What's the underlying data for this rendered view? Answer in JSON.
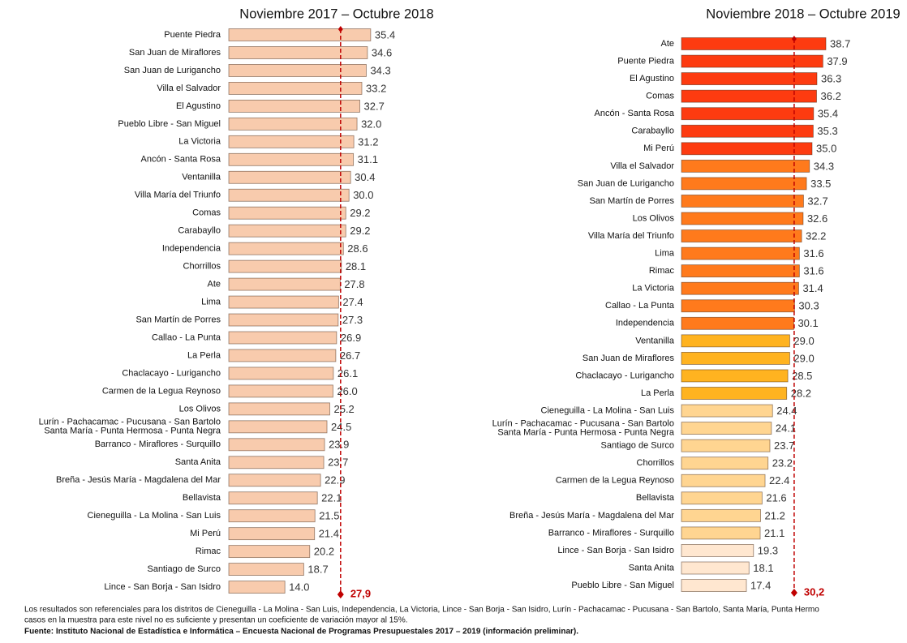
{
  "chart_data": [
    {
      "type": "bar",
      "orientation": "horizontal",
      "title": "Noviembre 2017 – Octubre 2018",
      "categories": [
        "Puente Piedra",
        "San Juan de Miraflores",
        "San Juan de Lurigancho",
        "Villa el Salvador",
        "El Agustino",
        "Pueblo Libre - San Miguel",
        "La Victoria",
        "Ancón - Santa Rosa",
        "Ventanilla",
        "Villa María del Triunfo",
        "Comas",
        "Carabayllo",
        "Independencia",
        "Chorrillos",
        "Ate",
        "Lima",
        "San Martín de Porres",
        "Callao - La Punta",
        "La Perla",
        "Chaclacayo - Lurigancho",
        "Carmen de la Legua Reynoso",
        "Los Olivos",
        [
          "Lurín - Pachacamac - Pucusana - San Bartolo",
          "Santa María - Punta Hermosa - Punta Negra"
        ],
        "Barranco - Miraflores - Surquillo",
        "Santa Anita",
        "Breña - Jesús María - Magdalena del Mar",
        "Bellavista",
        "Cieneguilla - La Molina - San Luis",
        "Mi Perú",
        "Rimac",
        "Santiago de Surco",
        "Lince - San Borja - San Isidro"
      ],
      "values": [
        35.4,
        34.6,
        34.3,
        33.2,
        32.7,
        32.0,
        31.2,
        31.1,
        30.4,
        30.0,
        29.2,
        29.2,
        28.6,
        28.1,
        27.8,
        27.4,
        27.3,
        26.9,
        26.7,
        26.1,
        26.0,
        25.2,
        24.5,
        23.9,
        23.7,
        22.9,
        22.1,
        21.5,
        21.4,
        20.2,
        18.7,
        14.0
      ],
      "value_labels": [
        "35.4",
        "34.6",
        "34.3",
        "33.2",
        "32.7",
        "32.0",
        "31.2",
        "31.1",
        "30.4",
        "30.0",
        "29.2",
        "29.2",
        "28.6",
        "28.1",
        "27.8",
        "27.4",
        "27.3",
        "26.9",
        "26.7",
        "26.1",
        "26.0",
        "25.2",
        "24.5",
        "23.9",
        "23.7",
        "22.9",
        "22.1",
        "21.5",
        "21.4",
        "20.2",
        "18.7",
        "14.0"
      ],
      "color": "#f8cbad",
      "average": 27.9,
      "average_label": "27,9"
    },
    {
      "type": "bar",
      "orientation": "horizontal",
      "title": "Noviembre 2018 – Octubre 2019",
      "categories": [
        "Ate",
        "Puente Piedra",
        "El Agustino",
        "Comas",
        "Ancón - Santa Rosa",
        "Carabayllo",
        "Mi Perú",
        "Villa el Salvador",
        "San Juan de Lurigancho",
        "San Martín de Porres",
        "Los Olivos",
        "Villa María del Triunfo",
        "Lima",
        "Rimac",
        "La Victoria",
        "Callao - La Punta",
        "Independencia",
        "Ventanilla",
        "San Juan de Miraflores",
        "Chaclacayo - Lurigancho",
        "La Perla",
        "Cieneguilla - La Molina - San Luis",
        [
          "Lurín - Pachacamac - Pucusana - San Bartolo",
          "Santa María - Punta Hermosa - Punta Negra"
        ],
        "Santiago de Surco",
        "Chorrillos",
        "Carmen de la Legua Reynoso",
        "Bellavista",
        "Breña - Jesús María - Magdalena del Mar",
        "Barranco - Miraflores - Surquillo",
        "Lince - San Borja - San Isidro",
        "Santa Anita",
        "Pueblo Libre - San Miguel"
      ],
      "values": [
        38.7,
        37.9,
        36.3,
        36.2,
        35.4,
        35.3,
        35.0,
        34.3,
        33.5,
        32.7,
        32.6,
        32.2,
        31.6,
        31.6,
        31.4,
        30.3,
        30.1,
        29.0,
        29.0,
        28.5,
        28.2,
        24.4,
        24.1,
        23.7,
        23.2,
        22.4,
        21.6,
        21.2,
        21.1,
        19.3,
        18.1,
        17.4
      ],
      "value_labels": [
        "38.7",
        "37.9",
        "36.3",
        "36.2",
        "35.4",
        "35.3",
        "35.0",
        "34.3",
        "33.5",
        "32.7",
        "32.6",
        "32.2",
        "31.6",
        "31.6",
        "31.4",
        "30.3",
        "30.1",
        "29.0",
        "29.0",
        "28.5",
        "28.2",
        "24.4",
        "24.1",
        "23.7",
        "23.2",
        "22.4",
        "21.6",
        "21.2",
        "21.1",
        "19.3",
        "18.1",
        "17.4"
      ],
      "colors": [
        "#fd3b10",
        "#fd3b10",
        "#fd3b10",
        "#fd3b10",
        "#fd3b10",
        "#fd3b10",
        "#fd3b10",
        "#ff7a1c",
        "#ff7a1c",
        "#ff7a1c",
        "#ff7a1c",
        "#ff7a1c",
        "#ff7a1c",
        "#ff7a1c",
        "#ff7a1c",
        "#ff7a1c",
        "#ff7a1c",
        "#ffb320",
        "#ffb320",
        "#ffb320",
        "#ffb320",
        "#ffd591",
        "#ffd591",
        "#ffd591",
        "#ffd591",
        "#ffd591",
        "#ffd591",
        "#ffd591",
        "#ffd591",
        "#ffe7d0",
        "#ffe7d0",
        "#ffe7d0"
      ],
      "average": 30.2,
      "average_label": "30,2"
    }
  ],
  "notes": [
    "Los resultados son referenciales para los distritos de Cieneguilla - La Molina - San Luis, Independencia,  La Victoria, Lince - San Borja - San Isidro, Lurín - Pachacamac - Pucusana - San Bartolo, Santa María, Punta Hermo",
    "casos en la muestra para este nivel no es suficiente y presentan un coeficiente de variación mayor al 15%."
  ],
  "source": "Fuente: Instituto Nacional de Estadística e Informática – Encuesta Nacional de Programas Presupuestales 2017 – 2019 (información preliminar)."
}
